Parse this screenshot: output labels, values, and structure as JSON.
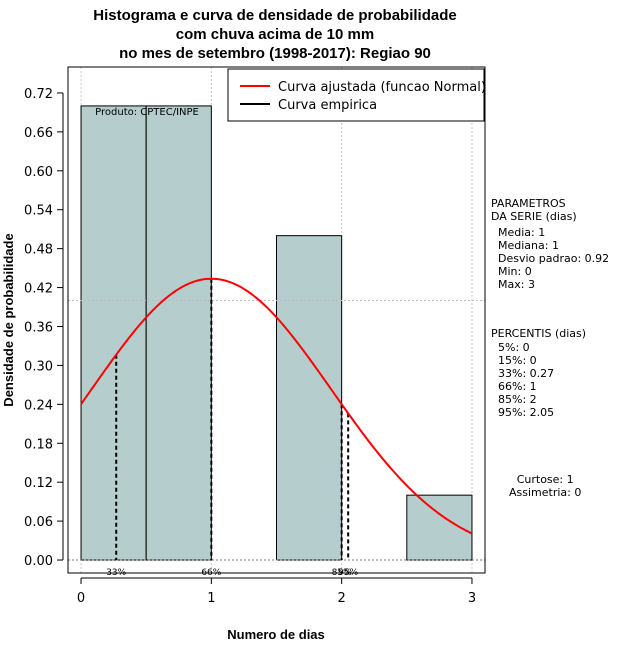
{
  "chart_data": {
    "type": "bar",
    "title_lines": [
      "Histograma e curva de densidade de probabilidade",
      "com chuva acima de 10 mm",
      "no mes de setembro (1998-2017): Regiao 90"
    ],
    "xlabel": "Numero de dias",
    "ylabel": "Densidade de probabilidade",
    "xlim": [
      -0.1,
      3.1
    ],
    "ylim": [
      -0.02,
      0.76
    ],
    "x_ticks": [
      "0",
      "1",
      "2",
      "3"
    ],
    "y_ticks": [
      "0.00",
      "0.06",
      "0.12",
      "0.18",
      "0.24",
      "0.30",
      "0.36",
      "0.42",
      "0.48",
      "0.54",
      "0.60",
      "0.66",
      "0.72"
    ],
    "histogram": [
      {
        "x_start": 0.0,
        "x_end": 0.5,
        "density": 0.7
      },
      {
        "x_start": 0.5,
        "x_end": 1.0,
        "density": 0.7
      },
      {
        "x_start": 1.5,
        "x_end": 2.0,
        "density": 0.5
      },
      {
        "x_start": 2.5,
        "x_end": 3.0,
        "density": 0.1
      }
    ],
    "bar_color": "#b5cdcd",
    "normal_fit": {
      "mean": 1,
      "sd": 0.92,
      "color": "#ff0000"
    },
    "empirical_curve_color": "#000000",
    "grid": true,
    "h_ref_line": 0.4,
    "legend": {
      "position": "top-right",
      "entries": [
        {
          "label": "Curva ajustada (funcao Normal)",
          "color": "#ff0000"
        },
        {
          "label": "Curva empirica",
          "color": "#000000"
        }
      ]
    },
    "credit": "Produto: CPTEC/INPE",
    "percentile_lines": [
      {
        "x": 0.27,
        "label": "33%"
      },
      {
        "x": 1.0,
        "label": "66%"
      },
      {
        "x": 2.0,
        "label": "85%"
      },
      {
        "x": 2.05,
        "label": "95%"
      }
    ]
  },
  "side_panel": {
    "params_heading": "PARAMETROS\nDA SERIE (dias)",
    "params_values": "Media: 1\nMediana: 1\nDesvio padrao: 0.92\nMin: 0\nMax: 3",
    "percentis_heading": "PERCENTIS (dias)",
    "percentis_values": "5%: 0\n15%: 0\n33%: 0.27\n66%: 1\n85%: 2\n95%: 2.05",
    "shape_values": "Curtose: 1\nAssimetria: 0"
  }
}
